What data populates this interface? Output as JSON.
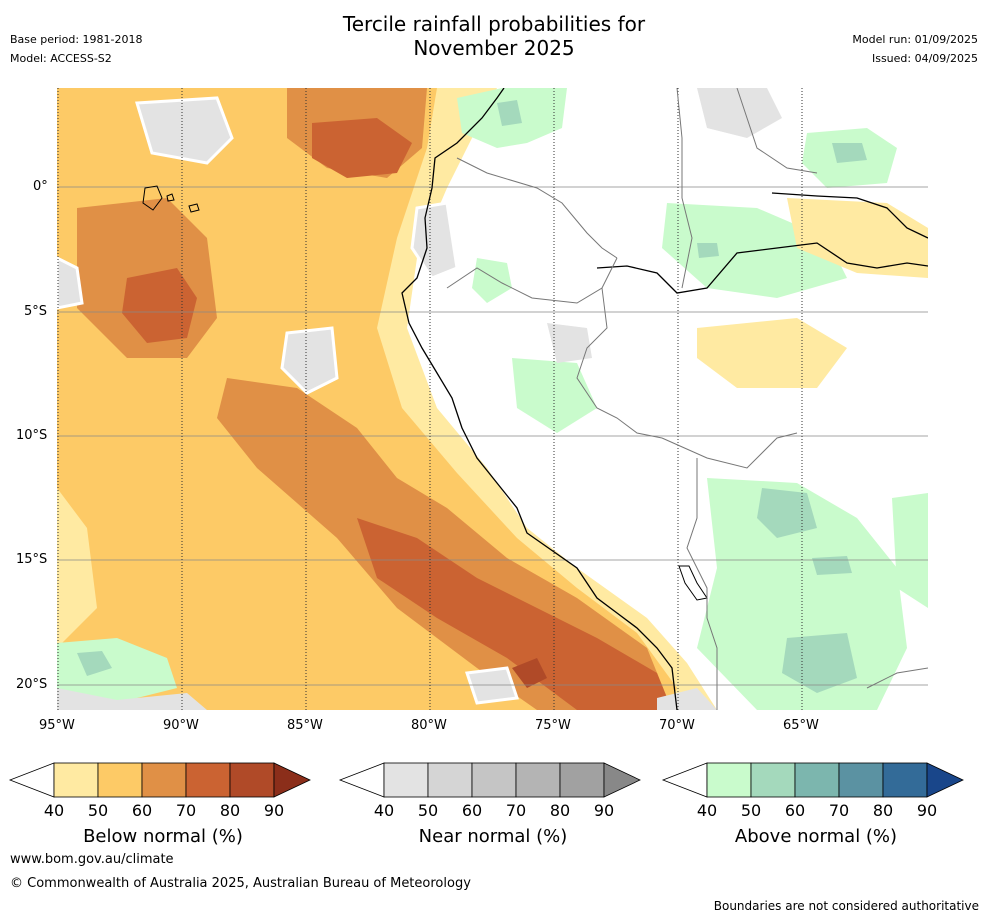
{
  "header": {
    "title_line1": "Tercile rainfall probabilities for",
    "title_line2": "November 2025",
    "base_period": "Base period: 1981-2018",
    "model": "Model: ACCESS-S2",
    "model_run": "Model run: 01/09/2025",
    "issued": "Issued: 04/09/2025"
  },
  "map": {
    "lat_labels": [
      "0°",
      "5°S",
      "10°S",
      "15°S",
      "20°S"
    ],
    "lon_labels": [
      "95°W",
      "90°W",
      "85°W",
      "80°W",
      "75°W",
      "70°W",
      "65°W"
    ]
  },
  "legends": [
    {
      "label": "Below normal (%)",
      "ticks": [
        "40",
        "50",
        "60",
        "70",
        "80",
        "90"
      ],
      "colors": [
        "#ffffff",
        "#ffeaa2",
        "#fdca66",
        "#e09046",
        "#cb6332",
        "#b04a28",
        "#8b2e1a"
      ]
    },
    {
      "label": "Near normal (%)",
      "ticks": [
        "40",
        "50",
        "60",
        "70",
        "80",
        "90"
      ],
      "colors": [
        "#ffffff",
        "#e3e3e3",
        "#d5d5d5",
        "#c5c5c5",
        "#b4b4b4",
        "#a1a1a1",
        "#888888"
      ]
    },
    {
      "label": "Above normal (%)",
      "ticks": [
        "40",
        "50",
        "60",
        "70",
        "80",
        "90"
      ],
      "colors": [
        "#ffffff",
        "#c9fbcc",
        "#a4d9bc",
        "#7cb6ae",
        "#5b92a2",
        "#336b98",
        "#19468a"
      ]
    }
  ],
  "footer": {
    "url": "www.bom.gov.au/climate",
    "copyright": "© Commonwealth of Australia 2025, Australian Bureau of Meteorology",
    "disclaimer": "Boundaries are not considered authoritative"
  }
}
